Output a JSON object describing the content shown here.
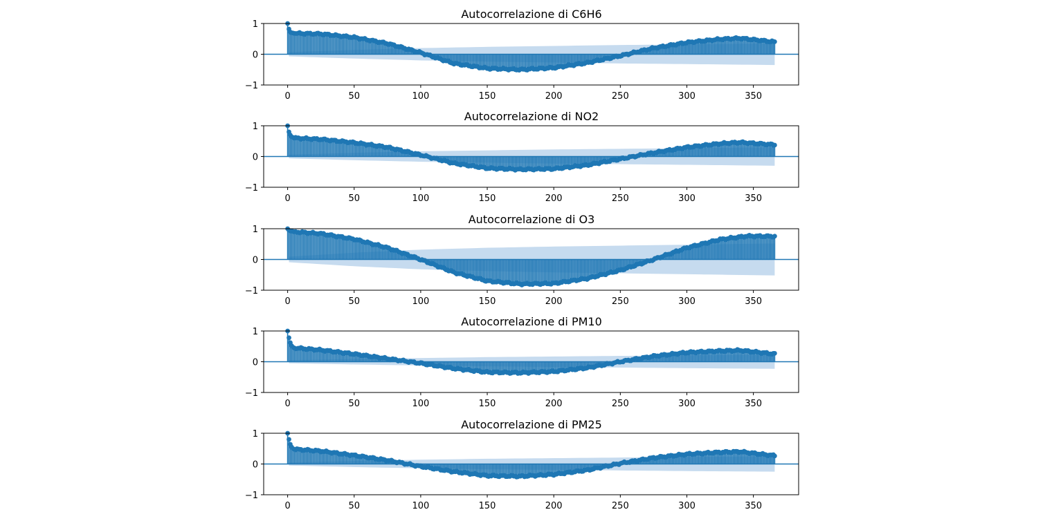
{
  "colors": {
    "stem": "#1f77b4",
    "confidence_band": "#c6dbef",
    "axes": "#000000"
  },
  "chart_data": [
    {
      "type": "stem",
      "title": "Autocorrelazione di C6H6",
      "xlabel": "",
      "ylabel": "",
      "xlim": [
        -18,
        384
      ],
      "ylim": [
        -1,
        1
      ],
      "x_ticks": [
        0,
        50,
        100,
        150,
        200,
        250,
        300,
        350
      ],
      "y_ticks": [
        -1,
        0,
        1
      ],
      "grid": false,
      "max_lag": 366,
      "acf_lag0": 1.0,
      "acf_early": [
        0.82,
        0.72,
        0.7,
        0.69,
        0.68
      ],
      "acf_profile": [
        [
          5,
          0.68
        ],
        [
          25,
          0.66
        ],
        [
          50,
          0.55
        ],
        [
          75,
          0.35
        ],
        [
          100,
          0.05
        ],
        [
          125,
          -0.3
        ],
        [
          150,
          -0.46
        ],
        [
          175,
          -0.5
        ],
        [
          200,
          -0.44
        ],
        [
          225,
          -0.28
        ],
        [
          250,
          -0.05
        ],
        [
          275,
          0.2
        ],
        [
          300,
          0.38
        ],
        [
          325,
          0.49
        ],
        [
          340,
          0.52
        ],
        [
          366,
          0.4
        ]
      ],
      "confidence_profile": [
        [
          1,
          0.07
        ],
        [
          50,
          0.14
        ],
        [
          100,
          0.2
        ],
        [
          150,
          0.24
        ],
        [
          200,
          0.27
        ],
        [
          250,
          0.3
        ],
        [
          300,
          0.32
        ],
        [
          366,
          0.35
        ]
      ]
    },
    {
      "type": "stem",
      "title": "Autocorrelazione di NO2",
      "xlabel": "",
      "ylabel": "",
      "xlim": [
        -18,
        384
      ],
      "ylim": [
        -1,
        1
      ],
      "x_ticks": [
        0,
        50,
        100,
        150,
        200,
        250,
        300,
        350
      ],
      "y_ticks": [
        -1,
        0,
        1
      ],
      "grid": false,
      "max_lag": 366,
      "acf_lag0": 1.0,
      "acf_early": [
        0.8,
        0.7,
        0.64,
        0.62,
        0.6
      ],
      "acf_profile": [
        [
          5,
          0.6
        ],
        [
          25,
          0.56
        ],
        [
          50,
          0.45
        ],
        [
          75,
          0.3
        ],
        [
          100,
          0.05
        ],
        [
          125,
          -0.22
        ],
        [
          150,
          -0.38
        ],
        [
          175,
          -0.42
        ],
        [
          200,
          -0.4
        ],
        [
          225,
          -0.28
        ],
        [
          250,
          -0.08
        ],
        [
          275,
          0.12
        ],
        [
          300,
          0.3
        ],
        [
          325,
          0.42
        ],
        [
          340,
          0.46
        ],
        [
          366,
          0.38
        ]
      ],
      "confidence_profile": [
        [
          1,
          0.06
        ],
        [
          50,
          0.12
        ],
        [
          100,
          0.17
        ],
        [
          150,
          0.2
        ],
        [
          200,
          0.23
        ],
        [
          250,
          0.25
        ],
        [
          300,
          0.27
        ],
        [
          366,
          0.3
        ]
      ]
    },
    {
      "type": "stem",
      "title": "Autocorrelazione di O3",
      "xlabel": "",
      "ylabel": "",
      "xlim": [
        -18,
        384
      ],
      "ylim": [
        -1,
        1
      ],
      "x_ticks": [
        0,
        50,
        100,
        150,
        200,
        250,
        300,
        350
      ],
      "y_ticks": [
        -1,
        0,
        1
      ],
      "grid": false,
      "max_lag": 366,
      "acf_lag0": 1.0,
      "acf_early": [
        0.95,
        0.93,
        0.92,
        0.91,
        0.9
      ],
      "acf_profile": [
        [
          5,
          0.9
        ],
        [
          25,
          0.84
        ],
        [
          50,
          0.66
        ],
        [
          75,
          0.38
        ],
        [
          100,
          0.0
        ],
        [
          125,
          -0.42
        ],
        [
          150,
          -0.7
        ],
        [
          175,
          -0.8
        ],
        [
          200,
          -0.78
        ],
        [
          225,
          -0.62
        ],
        [
          250,
          -0.35
        ],
        [
          275,
          0.0
        ],
        [
          300,
          0.38
        ],
        [
          325,
          0.65
        ],
        [
          345,
          0.76
        ],
        [
          366,
          0.75
        ]
      ],
      "confidence_profile": [
        [
          1,
          0.09
        ],
        [
          50,
          0.22
        ],
        [
          100,
          0.32
        ],
        [
          150,
          0.38
        ],
        [
          200,
          0.42
        ],
        [
          250,
          0.45
        ],
        [
          300,
          0.48
        ],
        [
          366,
          0.52
        ]
      ]
    },
    {
      "type": "stem",
      "title": "Autocorrelazione di PM10",
      "xlabel": "",
      "ylabel": "",
      "xlim": [
        -18,
        384
      ],
      "ylim": [
        -1,
        1
      ],
      "x_ticks": [
        0,
        50,
        100,
        150,
        200,
        250,
        300,
        350
      ],
      "y_ticks": [
        -1,
        0,
        1
      ],
      "grid": false,
      "max_lag": 366,
      "acf_lag0": 1.0,
      "acf_early": [
        0.78,
        0.62,
        0.52,
        0.47,
        0.45
      ],
      "acf_profile": [
        [
          5,
          0.45
        ],
        [
          25,
          0.38
        ],
        [
          50,
          0.25
        ],
        [
          75,
          0.1
        ],
        [
          100,
          -0.05
        ],
        [
          125,
          -0.22
        ],
        [
          150,
          -0.34
        ],
        [
          175,
          -0.36
        ],
        [
          200,
          -0.32
        ],
        [
          225,
          -0.2
        ],
        [
          250,
          0.0
        ],
        [
          275,
          0.18
        ],
        [
          300,
          0.3
        ],
        [
          325,
          0.35
        ],
        [
          340,
          0.37
        ],
        [
          366,
          0.25
        ]
      ],
      "confidence_profile": [
        [
          1,
          0.05
        ],
        [
          50,
          0.09
        ],
        [
          100,
          0.12
        ],
        [
          150,
          0.15
        ],
        [
          200,
          0.17
        ],
        [
          250,
          0.19
        ],
        [
          300,
          0.21
        ],
        [
          366,
          0.23
        ]
      ]
    },
    {
      "type": "stem",
      "title": "Autocorrelazione di PM25",
      "xlabel": "",
      "ylabel": "",
      "xlim": [
        -18,
        384
      ],
      "ylim": [
        -1,
        1
      ],
      "x_ticks": [
        0,
        50,
        100,
        150,
        200,
        250,
        300,
        350
      ],
      "y_ticks": [
        -1,
        0,
        1
      ],
      "grid": false,
      "max_lag": 366,
      "acf_lag0": 1.0,
      "acf_early": [
        0.8,
        0.64,
        0.55,
        0.5,
        0.48
      ],
      "acf_profile": [
        [
          5,
          0.48
        ],
        [
          25,
          0.42
        ],
        [
          50,
          0.28
        ],
        [
          75,
          0.12
        ],
        [
          100,
          -0.08
        ],
        [
          125,
          -0.25
        ],
        [
          150,
          -0.38
        ],
        [
          175,
          -0.4
        ],
        [
          200,
          -0.34
        ],
        [
          225,
          -0.2
        ],
        [
          250,
          0.02
        ],
        [
          275,
          0.2
        ],
        [
          300,
          0.32
        ],
        [
          325,
          0.38
        ],
        [
          340,
          0.4
        ],
        [
          366,
          0.27
        ]
      ],
      "confidence_profile": [
        [
          1,
          0.05
        ],
        [
          50,
          0.1
        ],
        [
          100,
          0.14
        ],
        [
          150,
          0.17
        ],
        [
          200,
          0.19
        ],
        [
          250,
          0.21
        ],
        [
          300,
          0.23
        ],
        [
          366,
          0.25
        ]
      ]
    }
  ]
}
